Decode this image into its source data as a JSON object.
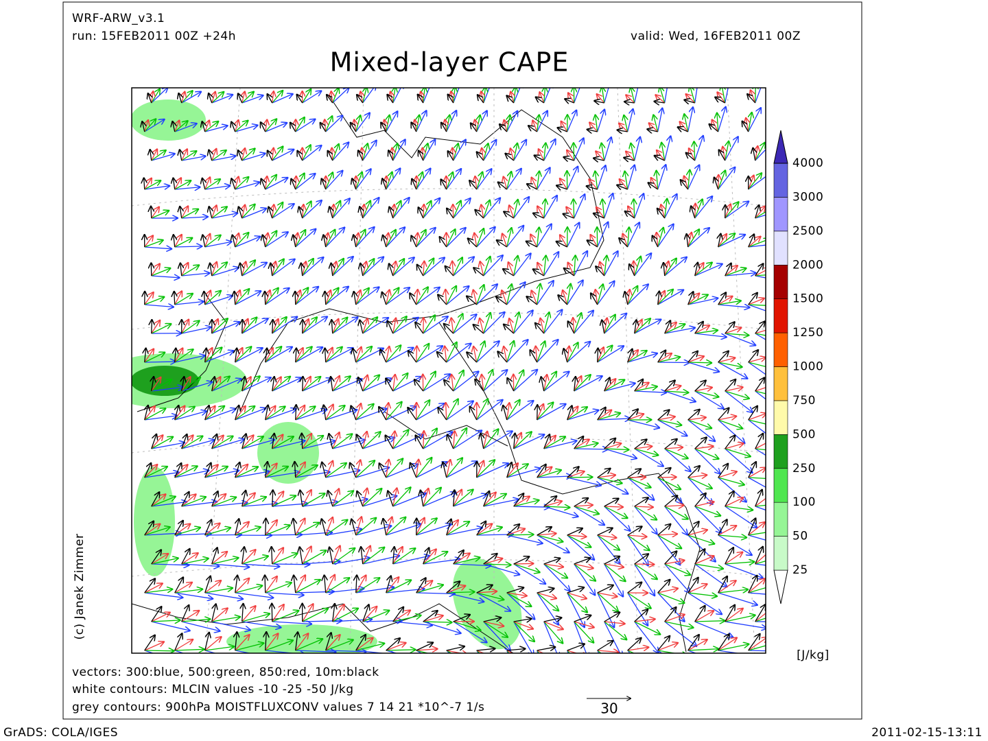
{
  "header": {
    "model": "WRF-ARW_v3.1",
    "run": "run: 15FEB2011 00Z +24h",
    "valid": "valid: Wed, 16FEB2011 00Z",
    "title": "Mixed-layer CAPE"
  },
  "colorbar": {
    "levels": [
      25,
      50,
      100,
      250,
      500,
      750,
      1000,
      1250,
      1500,
      2000,
      2500,
      3000,
      4000
    ],
    "colors": [
      "#ffffff",
      "#c8fac8",
      "#96f596",
      "#50e650",
      "#1ea01e",
      "#fffaaa",
      "#ffc03c",
      "#ff6000",
      "#e11400",
      "#a50000",
      "#e1e1ff",
      "#a096ff",
      "#6464e1",
      "#3c28b4"
    ],
    "unit": "[J/kg]"
  },
  "legend": {
    "lines": [
      "vectors: 300:blue, 500:green, 850:red, 10m:black",
      "white contours: MLCIN values -10 -25 -50 J/kg",
      "grey contours: 900hPa MOISTFLUXCONV values 7 14 21 *10^-7 1/s"
    ],
    "reference_vector": "30"
  },
  "credit": "(c) Janek Zimmer",
  "footer": {
    "left": "GrADS: COLA/IGES",
    "right": "2011-02-15-13:11"
  }
}
